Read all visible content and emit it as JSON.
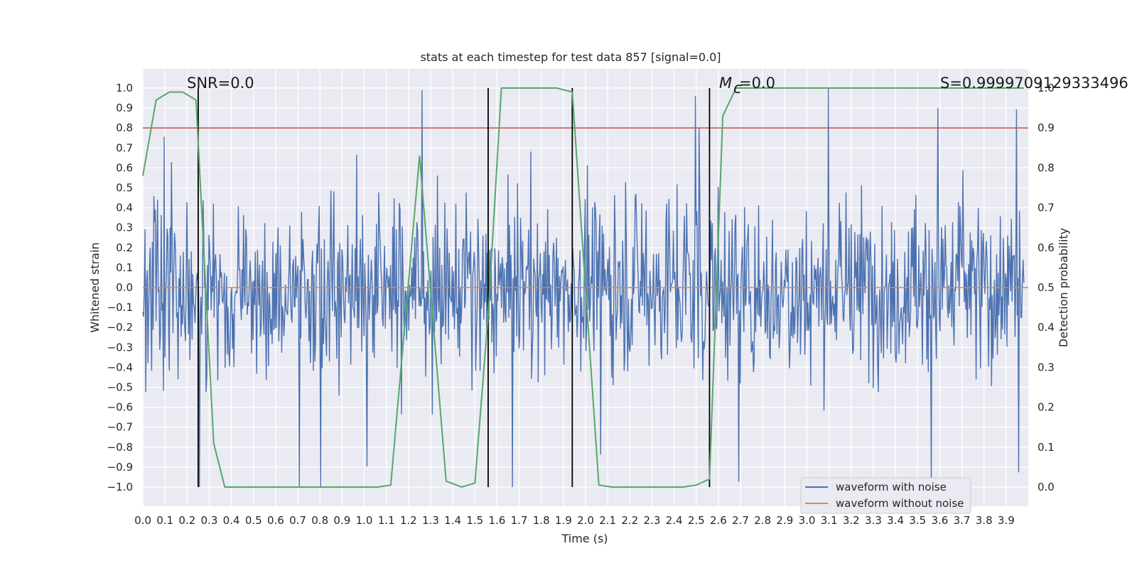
{
  "chart_data": {
    "type": "line",
    "title": "stats at each timestep for test data 857 [signal=0.0]",
    "xlabel": "Time (s)",
    "ylabel": "Whitened strain",
    "y2label": "Detection probability",
    "xlim": [
      0.0,
      4.0
    ],
    "ylim": [
      -1.1,
      1.1
    ],
    "y2lim": [
      -0.05,
      1.0
    ],
    "x_ticks": [
      "0.0",
      "0.1",
      "0.2",
      "0.3",
      "0.4",
      "0.5",
      "0.6",
      "0.7",
      "0.8",
      "0.9",
      "1.0",
      "1.1",
      "1.2",
      "1.3",
      "1.4",
      "1.5",
      "1.6",
      "1.7",
      "1.8",
      "1.9",
      "2.0",
      "2.1",
      "2.2",
      "2.3",
      "2.4",
      "2.5",
      "2.6",
      "2.7",
      "2.8",
      "2.9",
      "3.0",
      "3.1",
      "3.2",
      "3.3",
      "3.4",
      "3.5",
      "3.6",
      "3.7",
      "3.8",
      "3.9"
    ],
    "y_ticks": [
      "1.0",
      "0.9",
      "0.8",
      "0.7",
      "0.6",
      "0.5",
      "0.4",
      "0.3",
      "0.2",
      "0.1",
      "0.0",
      "−0.1",
      "−0.2",
      "−0.3",
      "−0.4",
      "−0.5",
      "−0.6",
      "−0.7",
      "−0.8",
      "−0.9",
      "−1.0"
    ],
    "y2_ticks": [
      "1.0",
      "0.9",
      "0.8",
      "0.7",
      "0.6",
      "0.5",
      "0.4",
      "0.3",
      "0.2",
      "0.1",
      "0.0"
    ],
    "threshold": 0.9,
    "noise_amplitude": 0.8,
    "noise_samples": 1200,
    "detection_probability": {
      "x": [
        0.0,
        0.06,
        0.12,
        0.18,
        0.24,
        0.32,
        0.37,
        0.45,
        1.06,
        1.12,
        1.25,
        1.37,
        1.44,
        1.5,
        1.56,
        1.62,
        1.68,
        1.75,
        1.87,
        1.94,
        2.06,
        2.12,
        2.44,
        2.5,
        2.56,
        2.62,
        2.68,
        3.98
      ],
      "y": [
        0.78,
        0.97,
        0.99,
        0.99,
        0.97,
        0.11,
        0.0,
        0.0,
        0.0,
        0.005,
        0.83,
        0.015,
        0.0,
        0.01,
        0.43,
        1.0,
        1.0,
        1.0,
        1.0,
        0.99,
        0.005,
        0.0,
        0.0,
        0.005,
        0.02,
        0.93,
        1.0,
        1.0
      ]
    },
    "vertical_lines": [
      0.25,
      1.56,
      1.94,
      2.56
    ],
    "series": [
      {
        "name": "waveform with noise",
        "color": "#4c72b0"
      },
      {
        "name": "waveform without noise",
        "color": "#dd8452"
      }
    ],
    "probability_color": "#55a868",
    "threshold_color": "#c44e52",
    "annotations": [
      "SNR=0.0",
      "=0.0",
      "S=0.9999709129333496"
    ],
    "mc_symbol": "M",
    "mc_subscript": "c"
  }
}
